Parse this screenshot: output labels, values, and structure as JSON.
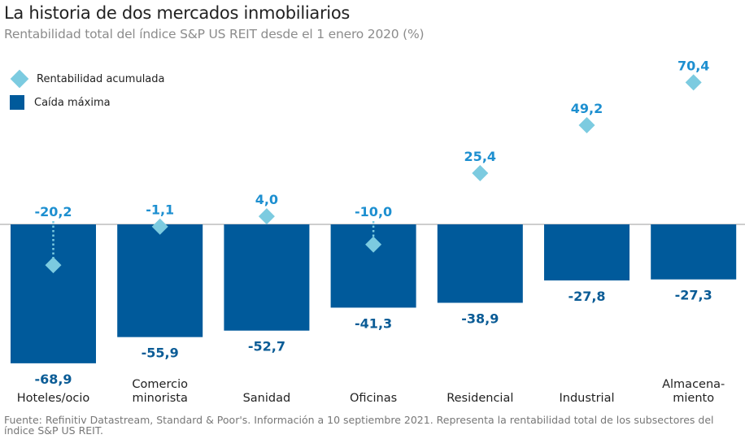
{
  "header": {
    "title": "La historia de dos mercados inmobiliarios",
    "subtitle": "Rentabilidad total del índice S&P US REIT desde el 1 enero 2020 (%)"
  },
  "legend": [
    {
      "label": "Rentabilidad acumulada",
      "shape": "diamond",
      "color": "#7ccbe0"
    },
    {
      "label": "Caída máxima",
      "shape": "square",
      "color": "#005a9b"
    }
  ],
  "colors": {
    "bar": "#005a9b",
    "diamond": "#7ccbe0",
    "return_label": "#1d8fd0",
    "drawdown_label": "#0b5c96",
    "baseline": "#b0b0b0"
  },
  "chart_data": {
    "type": "bar",
    "title": "La historia de dos mercados inmobiliarios",
    "subtitle": "Rentabilidad total del índice S&P US REIT desde el 1 enero 2020 (%)",
    "xlabel": "",
    "ylabel": "",
    "categories": [
      [
        "Hoteles/ocio"
      ],
      [
        "Comercio",
        "minorista"
      ],
      [
        "Sanidad"
      ],
      [
        "Oficinas"
      ],
      [
        "Residencial"
      ],
      [
        "Industrial"
      ],
      [
        "Almacena-",
        "miento"
      ]
    ],
    "series": [
      {
        "name": "Caída máxima",
        "kind": "bar",
        "values": [
          -68.9,
          -55.9,
          -52.7,
          -41.3,
          -38.9,
          -27.8,
          -27.3
        ],
        "labels": [
          "-68,9",
          "-55,9",
          "-52,7",
          "-41,3",
          "-38,9",
          "-27,8",
          "-27,3"
        ]
      },
      {
        "name": "Rentabilidad acumulada",
        "kind": "marker-diamond",
        "values": [
          -20.2,
          -1.1,
          4.0,
          -10.0,
          25.4,
          49.2,
          70.4
        ],
        "labels": [
          "-20,2",
          "-1,1",
          "4,0",
          "-10,0",
          "25,4",
          "49,2",
          "70,4"
        ]
      }
    ],
    "ylim": [
      -70,
      75
    ],
    "grid": false,
    "legend_position": "top-left"
  },
  "footer": {
    "source": "Fuente: Refinitiv Datastream, Standard & Poor's. Información a 10 septiembre 2021. Representa la rentabilidad total de los subsectores del índice S&P US REIT."
  }
}
